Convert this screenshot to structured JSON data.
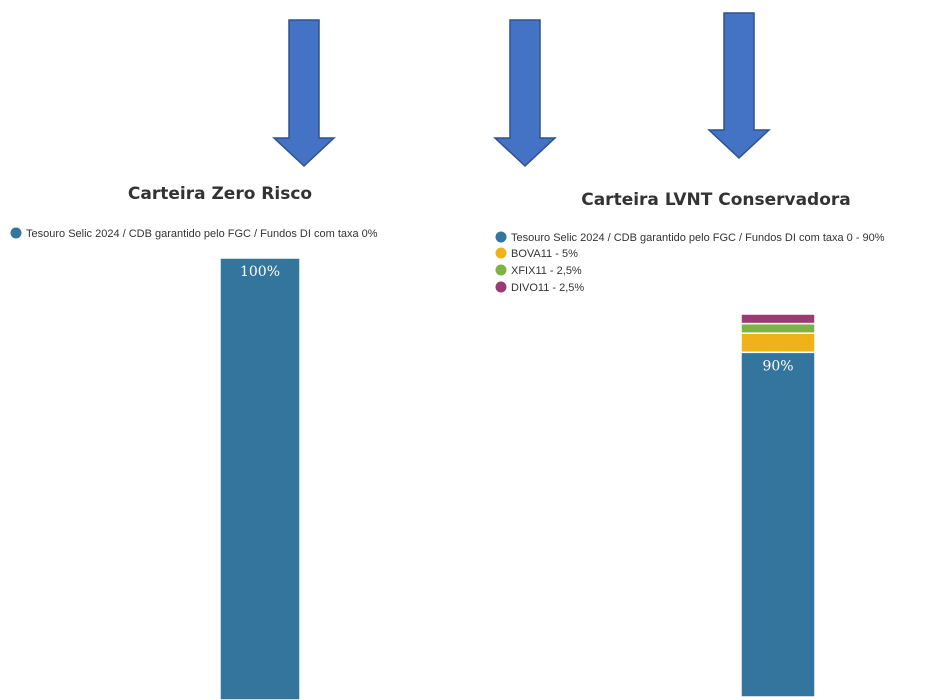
{
  "colors": {
    "arrow_fill": "#4472c4",
    "arrow_stroke": "#2f528f"
  },
  "chart_data": [
    {
      "type": "bar",
      "stacked": true,
      "title": "Carteira Zero Risco",
      "legend_position": "top-left",
      "grid": false,
      "ylim": [
        0,
        100
      ],
      "series": [
        {
          "name": "Tesouro Selic 2024 / CDB garantido pelo FGC / Fundos DI com taxa 0%",
          "value": 100,
          "label": "100%",
          "color": "#34759e"
        }
      ]
    },
    {
      "type": "bar",
      "stacked": true,
      "title": "Carteira LVNT Conservadora",
      "legend_position": "top-left",
      "grid": false,
      "ylim": [
        0,
        100
      ],
      "series": [
        {
          "name": "Tesouro Selic 2024 / CDB garantido pelo FGC / Fundos DI com taxa 0 - 90%",
          "value": 90,
          "label": "90%",
          "color": "#34759e"
        },
        {
          "name": "BOVA11 - 5%",
          "value": 5,
          "label": "",
          "color": "#f0b21b"
        },
        {
          "name": "XFIX11 - 2,5%",
          "value": 2.5,
          "label": "",
          "color": "#7cb342"
        },
        {
          "name": "DIVO11 - 2,5%",
          "value": 2.5,
          "label": "",
          "color": "#9b3b72"
        }
      ]
    }
  ]
}
